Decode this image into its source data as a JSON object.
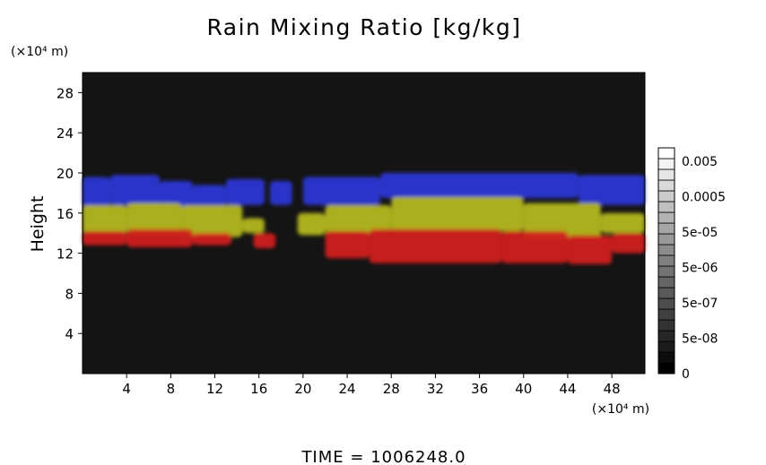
{
  "chart_data": {
    "type": "heatmap",
    "title": "Rain Mixing Ratio [kg/kg]",
    "ylabel": "Height",
    "y_scale_label": "(×10⁴ m)",
    "x_scale_label": "(×10⁴ m)",
    "time_label": "TIME",
    "time_separator": "=",
    "time_value": "1006248.0",
    "xlim": [
      0,
      51
    ],
    "ylim": [
      0,
      30
    ],
    "x_ticks": [
      4,
      8,
      12,
      16,
      20,
      24,
      28,
      32,
      36,
      40,
      44,
      48
    ],
    "y_ticks": [
      4,
      8,
      12,
      16,
      20,
      24,
      28
    ],
    "background_color": "#141414",
    "colorbar": {
      "labels": [
        "0.005",
        "0.0005",
        "5e-05",
        "5e-06",
        "5e-07",
        "5e-08",
        "0"
      ],
      "steps": 21,
      "min_color": "#000000",
      "max_color": "#ffffff"
    },
    "layers": [
      {
        "name": "blue",
        "color": "#2a37d4",
        "segments": [
          {
            "x": [
              0.0,
              2.5
            ],
            "y": [
              16.6,
              19.6
            ]
          },
          {
            "x": [
              2.5,
              7.0
            ],
            "y": [
              16.8,
              19.8
            ]
          },
          {
            "x": [
              7.0,
              10.0
            ],
            "y": [
              16.5,
              19.2
            ]
          },
          {
            "x": [
              10.0,
              13.0
            ],
            "y": [
              16.3,
              18.8
            ]
          },
          {
            "x": [
              13.0,
              16.5
            ],
            "y": [
              16.8,
              19.4
            ]
          },
          {
            "x": [
              17.0,
              19.0
            ],
            "y": [
              16.8,
              19.2
            ]
          },
          {
            "x": [
              20.0,
              27.0
            ],
            "y": [
              16.8,
              19.6
            ]
          },
          {
            "x": [
              27.0,
              45.0
            ],
            "y": [
              17.5,
              20.0
            ]
          },
          {
            "x": [
              45.0,
              51.0
            ],
            "y": [
              16.8,
              19.8
            ]
          }
        ]
      },
      {
        "name": "yellow",
        "color": "#b3b61a",
        "segments": [
          {
            "x": [
              0.0,
              4.0
            ],
            "y": [
              14.0,
              16.8
            ]
          },
          {
            "x": [
              4.0,
              9.0
            ],
            "y": [
              13.8,
              17.0
            ]
          },
          {
            "x": [
              9.0,
              14.5
            ],
            "y": [
              13.6,
              16.8
            ]
          },
          {
            "x": [
              14.5,
              16.5
            ],
            "y": [
              14.0,
              15.5
            ]
          },
          {
            "x": [
              19.5,
              22.0
            ],
            "y": [
              13.8,
              16.0
            ]
          },
          {
            "x": [
              22.0,
              28.0
            ],
            "y": [
              14.0,
              16.8
            ]
          },
          {
            "x": [
              28.0,
              40.0
            ],
            "y": [
              14.2,
              17.6
            ]
          },
          {
            "x": [
              40.0,
              47.0
            ],
            "y": [
              13.4,
              17.0
            ]
          },
          {
            "x": [
              47.0,
              51.0
            ],
            "y": [
              14.0,
              16.0
            ]
          }
        ]
      },
      {
        "name": "red",
        "color": "#d01e1e",
        "segments": [
          {
            "x": [
              0.0,
              4.0
            ],
            "y": [
              12.8,
              14.2
            ]
          },
          {
            "x": [
              4.0,
              10.0
            ],
            "y": [
              12.6,
              14.4
            ]
          },
          {
            "x": [
              10.0,
              13.5
            ],
            "y": [
              12.8,
              14.0
            ]
          },
          {
            "x": [
              15.5,
              17.5
            ],
            "y": [
              12.5,
              14.0
            ]
          },
          {
            "x": [
              22.0,
              26.0
            ],
            "y": [
              11.5,
              14.2
            ]
          },
          {
            "x": [
              26.0,
              38.0
            ],
            "y": [
              11.0,
              14.4
            ]
          },
          {
            "x": [
              38.0,
              44.0
            ],
            "y": [
              11.0,
              14.2
            ]
          },
          {
            "x": [
              44.0,
              48.0
            ],
            "y": [
              10.9,
              13.8
            ]
          },
          {
            "x": [
              48.0,
              51.0
            ],
            "y": [
              12.0,
              14.0
            ]
          }
        ]
      }
    ]
  }
}
